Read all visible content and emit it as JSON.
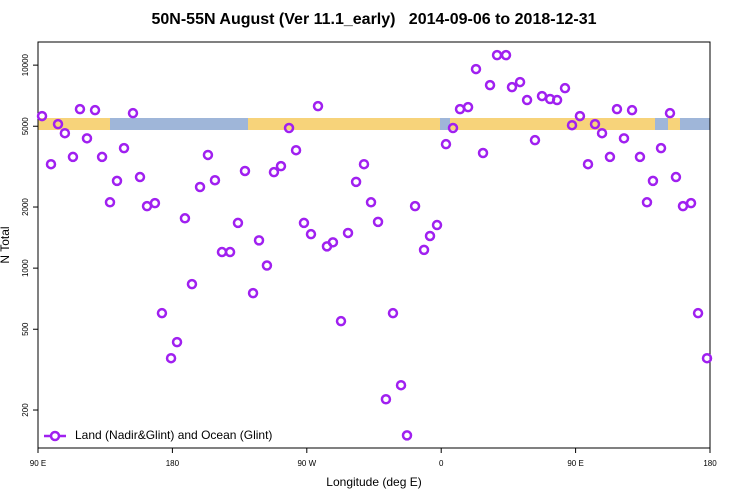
{
  "chart_data": {
    "type": "scatter",
    "title": "50N-55N August (Ver 11.1_early)   2014-09-06 to 2018-12-31",
    "xlabel": "Longitude (deg E)",
    "ylabel": "N Total",
    "log_y": true,
    "legend": "bottom-left",
    "xlim": [
      90,
      540
    ],
    "ylim": [
      130,
      13000
    ],
    "xticks": [
      {
        "value": 90,
        "label": "90 E"
      },
      180,
      {
        "value": 270,
        "label": "90 W"
      },
      {
        "value": 360,
        "label": "0"
      },
      {
        "value": 450,
        "label": "90 E"
      },
      {
        "value": 540,
        "label": "180"
      }
    ],
    "yticks": [
      200,
      500,
      1000,
      2000,
      5000,
      10000
    ],
    "series": [
      {
        "name": "Land (Nadir&Glint) and Ocean (Glint)",
        "color": "#a020f0",
        "x": [
          92.7,
          98.7,
          103.4,
          108,
          113.4,
          118.1,
          122.8,
          128.2,
          132.9,
          138.2,
          142.9,
          147.6,
          153.6,
          158.3,
          163,
          168.3,
          173,
          179.1,
          183.1,
          188.4,
          193.1,
          198.5,
          203.8,
          208.5,
          213.2,
          218.6,
          223.9,
          228.6,
          234,
          238,
          243.3,
          248,
          252.7,
          258.1,
          262.8,
          268.1,
          272.8,
          277.5,
          283.5,
          287.5,
          292.9,
          297.6,
          303,
          308.3,
          313,
          317.7,
          323,
          327.7,
          333.1,
          337.1,
          342.5,
          348.5,
          352.5,
          357.2,
          363.2,
          367.9,
          372.6,
          378,
          383.3,
          388,
          392.7,
          397.4,
          403.4,
          407.4,
          412.8,
          417.5,
          422.8,
          427.5,
          432.9,
          437.6,
          442.9,
          447.6,
          452.9,
          458.3,
          463,
          467.7,
          473,
          477.7,
          482.4,
          487.8,
          493.1,
          497.8,
          501.8,
          507.2,
          513.2,
          517.2,
          521.9,
          527.3,
          532,
          538
        ],
        "values": [
          5610,
          3250,
          5120,
          4620,
          3530,
          6070,
          4360,
          6000,
          3530,
          2110,
          2690,
          3900,
          5800,
          2810,
          2020,
          2090,
          600,
          360,
          432,
          1760,
          834,
          2510,
          3610,
          2710,
          1200,
          1200,
          1670,
          3010,
          753,
          1370,
          1030,
          2970,
          3180,
          4900,
          3810,
          1670,
          1470,
          6280,
          1280,
          1340,
          548,
          1490,
          2660,
          3250,
          2110,
          1690,
          226,
          600,
          265,
          150,
          2020,
          1230,
          1440,
          1630,
          4080,
          4900,
          6070,
          6210,
          9560,
          3690,
          7970,
          11200,
          11200,
          7790,
          8250,
          6730,
          4270,
          7040,
          6810,
          6730,
          7700,
          5060,
          5610,
          3250,
          5120,
          4620,
          3530,
          6070,
          4360,
          6000,
          3530,
          2110,
          2690,
          3900,
          5800,
          2810,
          2020,
          2090,
          600,
          360
        ]
      }
    ]
  }
}
